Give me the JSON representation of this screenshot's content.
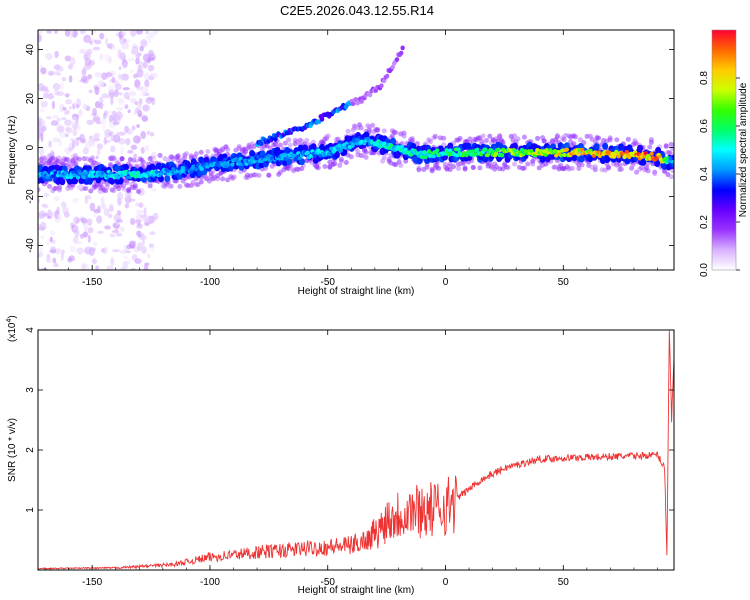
{
  "chart_data": [
    {
      "type": "heatmap",
      "title": "C2E5.2026.043.12.55.R14",
      "xlabel": "Height of straight line (km)",
      "ylabel": "Frequency (Hz)",
      "xlim": [
        -173,
        97
      ],
      "ylim": [
        -50,
        48
      ],
      "xticks": [
        -150,
        -100,
        -50,
        0,
        50
      ],
      "yticks": [
        -40,
        -20,
        0,
        20,
        40
      ],
      "colorbar": {
        "label": "Normalized spectral amplitude",
        "range": [
          0,
          1
        ],
        "ticks": [
          0.0,
          0.2,
          0.4,
          0.6,
          0.8
        ],
        "colors": [
          "#ffffff",
          "#d9b3ff",
          "#9933ff",
          "#6600ff",
          "#0000ff",
          "#0099ff",
          "#00ffff",
          "#00ff66",
          "#33ff00",
          "#ccff00",
          "#ffcc00",
          "#ff6600",
          "#ff0033"
        ]
      },
      "ridge": [
        {
          "x": -173,
          "y": -11,
          "a": 0.45
        },
        {
          "x": -150,
          "y": -11,
          "a": 0.5
        },
        {
          "x": -130,
          "y": -11,
          "a": 0.55
        },
        {
          "x": -110,
          "y": -9,
          "a": 0.45
        },
        {
          "x": -90,
          "y": -6,
          "a": 0.45
        },
        {
          "x": -70,
          "y": -4,
          "a": 0.45
        },
        {
          "x": -50,
          "y": -2,
          "a": 0.5
        },
        {
          "x": -35,
          "y": 3,
          "a": 0.5
        },
        {
          "x": -25,
          "y": 1,
          "a": 0.55
        },
        {
          "x": -10,
          "y": -3,
          "a": 0.6
        },
        {
          "x": 0,
          "y": -2,
          "a": 0.6
        },
        {
          "x": 20,
          "y": -2,
          "a": 0.7
        },
        {
          "x": 40,
          "y": -2,
          "a": 0.8
        },
        {
          "x": 60,
          "y": -2,
          "a": 0.9
        },
        {
          "x": 80,
          "y": -3,
          "a": 0.95
        },
        {
          "x": 90,
          "y": -4,
          "a": 0.95
        },
        {
          "x": 97,
          "y": -6,
          "a": 0.4
        }
      ],
      "branch": [
        {
          "x": -80,
          "y": 2
        },
        {
          "x": -60,
          "y": 8
        },
        {
          "x": -45,
          "y": 16
        },
        {
          "x": -35,
          "y": 20
        },
        {
          "x": -28,
          "y": 25
        },
        {
          "x": -18,
          "y": 40
        }
      ]
    },
    {
      "type": "line",
      "xlabel": "Height of straight line (km)",
      "ylabel": "SNR (10 * v/v)",
      "scale_label": "(x10",
      "scale_exp": "4",
      "scale_close": ")",
      "xlim": [
        -173,
        97
      ],
      "ylim": [
        0,
        4
      ],
      "xticks": [
        -150,
        -100,
        -50,
        0,
        50
      ],
      "yticks": [
        1,
        2,
        3,
        4
      ],
      "series": [
        {
          "name": "SNR",
          "color": "#ee3333",
          "envelope": [
            {
              "x": -173,
              "y": 0.02
            },
            {
              "x": -140,
              "y": 0.03
            },
            {
              "x": -130,
              "y": 0.05
            },
            {
              "x": -115,
              "y": 0.08
            },
            {
              "x": -100,
              "y": 0.18
            },
            {
              "x": -80,
              "y": 0.25
            },
            {
              "x": -60,
              "y": 0.3
            },
            {
              "x": -40,
              "y": 0.35
            },
            {
              "x": -32,
              "y": 0.45
            },
            {
              "x": -25,
              "y": 0.9
            },
            {
              "x": -15,
              "y": 1.05
            },
            {
              "x": -5,
              "y": 1.05
            },
            {
              "x": 5,
              "y": 1.2
            },
            {
              "x": 15,
              "y": 1.5
            },
            {
              "x": 25,
              "y": 1.7
            },
            {
              "x": 40,
              "y": 1.85
            },
            {
              "x": 60,
              "y": 1.88
            },
            {
              "x": 80,
              "y": 1.9
            },
            {
              "x": 90,
              "y": 1.92
            },
            {
              "x": 93,
              "y": 1.7
            },
            {
              "x": 94,
              "y": 0.25
            },
            {
              "x": 95,
              "y": 4.0
            },
            {
              "x": 96,
              "y": 2.5
            },
            {
              "x": 97,
              "y": 3.6
            }
          ]
        }
      ]
    }
  ]
}
